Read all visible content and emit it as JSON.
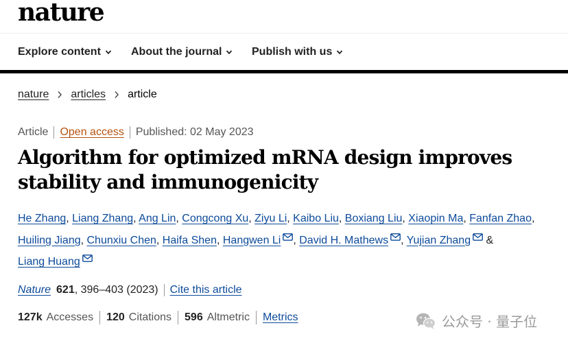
{
  "site": {
    "logo": "nature"
  },
  "nav": [
    {
      "label": "Explore content"
    },
    {
      "label": "About the journal"
    },
    {
      "label": "Publish with us"
    }
  ],
  "breadcrumb": [
    {
      "label": "nature"
    },
    {
      "label": "articles"
    },
    {
      "label": "article"
    }
  ],
  "meta": {
    "type": "Article",
    "access": "Open access",
    "published": "Published: 02 May 2023"
  },
  "title": "Algorithm for optimized mRNA design improves stability and immunogenicity",
  "authors": [
    {
      "name": "He Zhang",
      "mail": false
    },
    {
      "name": "Liang Zhang",
      "mail": false
    },
    {
      "name": "Ang Lin",
      "mail": false
    },
    {
      "name": "Congcong Xu",
      "mail": false
    },
    {
      "name": "Ziyu Li",
      "mail": false
    },
    {
      "name": "Kaibo Liu",
      "mail": false
    },
    {
      "name": "Boxiang Liu",
      "mail": false
    },
    {
      "name": "Xiaopin Ma",
      "mail": false
    },
    {
      "name": "Fanfan Zhao",
      "mail": false
    },
    {
      "name": "Huiling Jiang",
      "mail": false
    },
    {
      "name": "Chunxiu Chen",
      "mail": false
    },
    {
      "name": "Haifa Shen",
      "mail": false
    },
    {
      "name": "Hangwen Li",
      "mail": true
    },
    {
      "name": "David H. Mathews",
      "mail": true
    },
    {
      "name": "Yujian Zhang",
      "mail": true
    },
    {
      "name": "Liang Huang",
      "mail": true
    }
  ],
  "authors_ampersand": "&",
  "citation": {
    "journal": "Nature",
    "volume": "621",
    "pages": ", 396–403 (2023)",
    "cite_link": "Cite this article"
  },
  "metrics": {
    "accesses_value": "127k",
    "accesses_label": "Accesses",
    "citations_value": "120",
    "citations_label": "Citations",
    "altmetric_value": "596",
    "altmetric_label": "Altmetric",
    "metrics_link": "Metrics"
  },
  "watermark": {
    "text": "公众号 · 量子位",
    "icon": "wechat-icon"
  },
  "colors": {
    "link": "#0c4a9a",
    "open_access": "#b6520e",
    "text": "#222222",
    "muted": "#555555"
  }
}
